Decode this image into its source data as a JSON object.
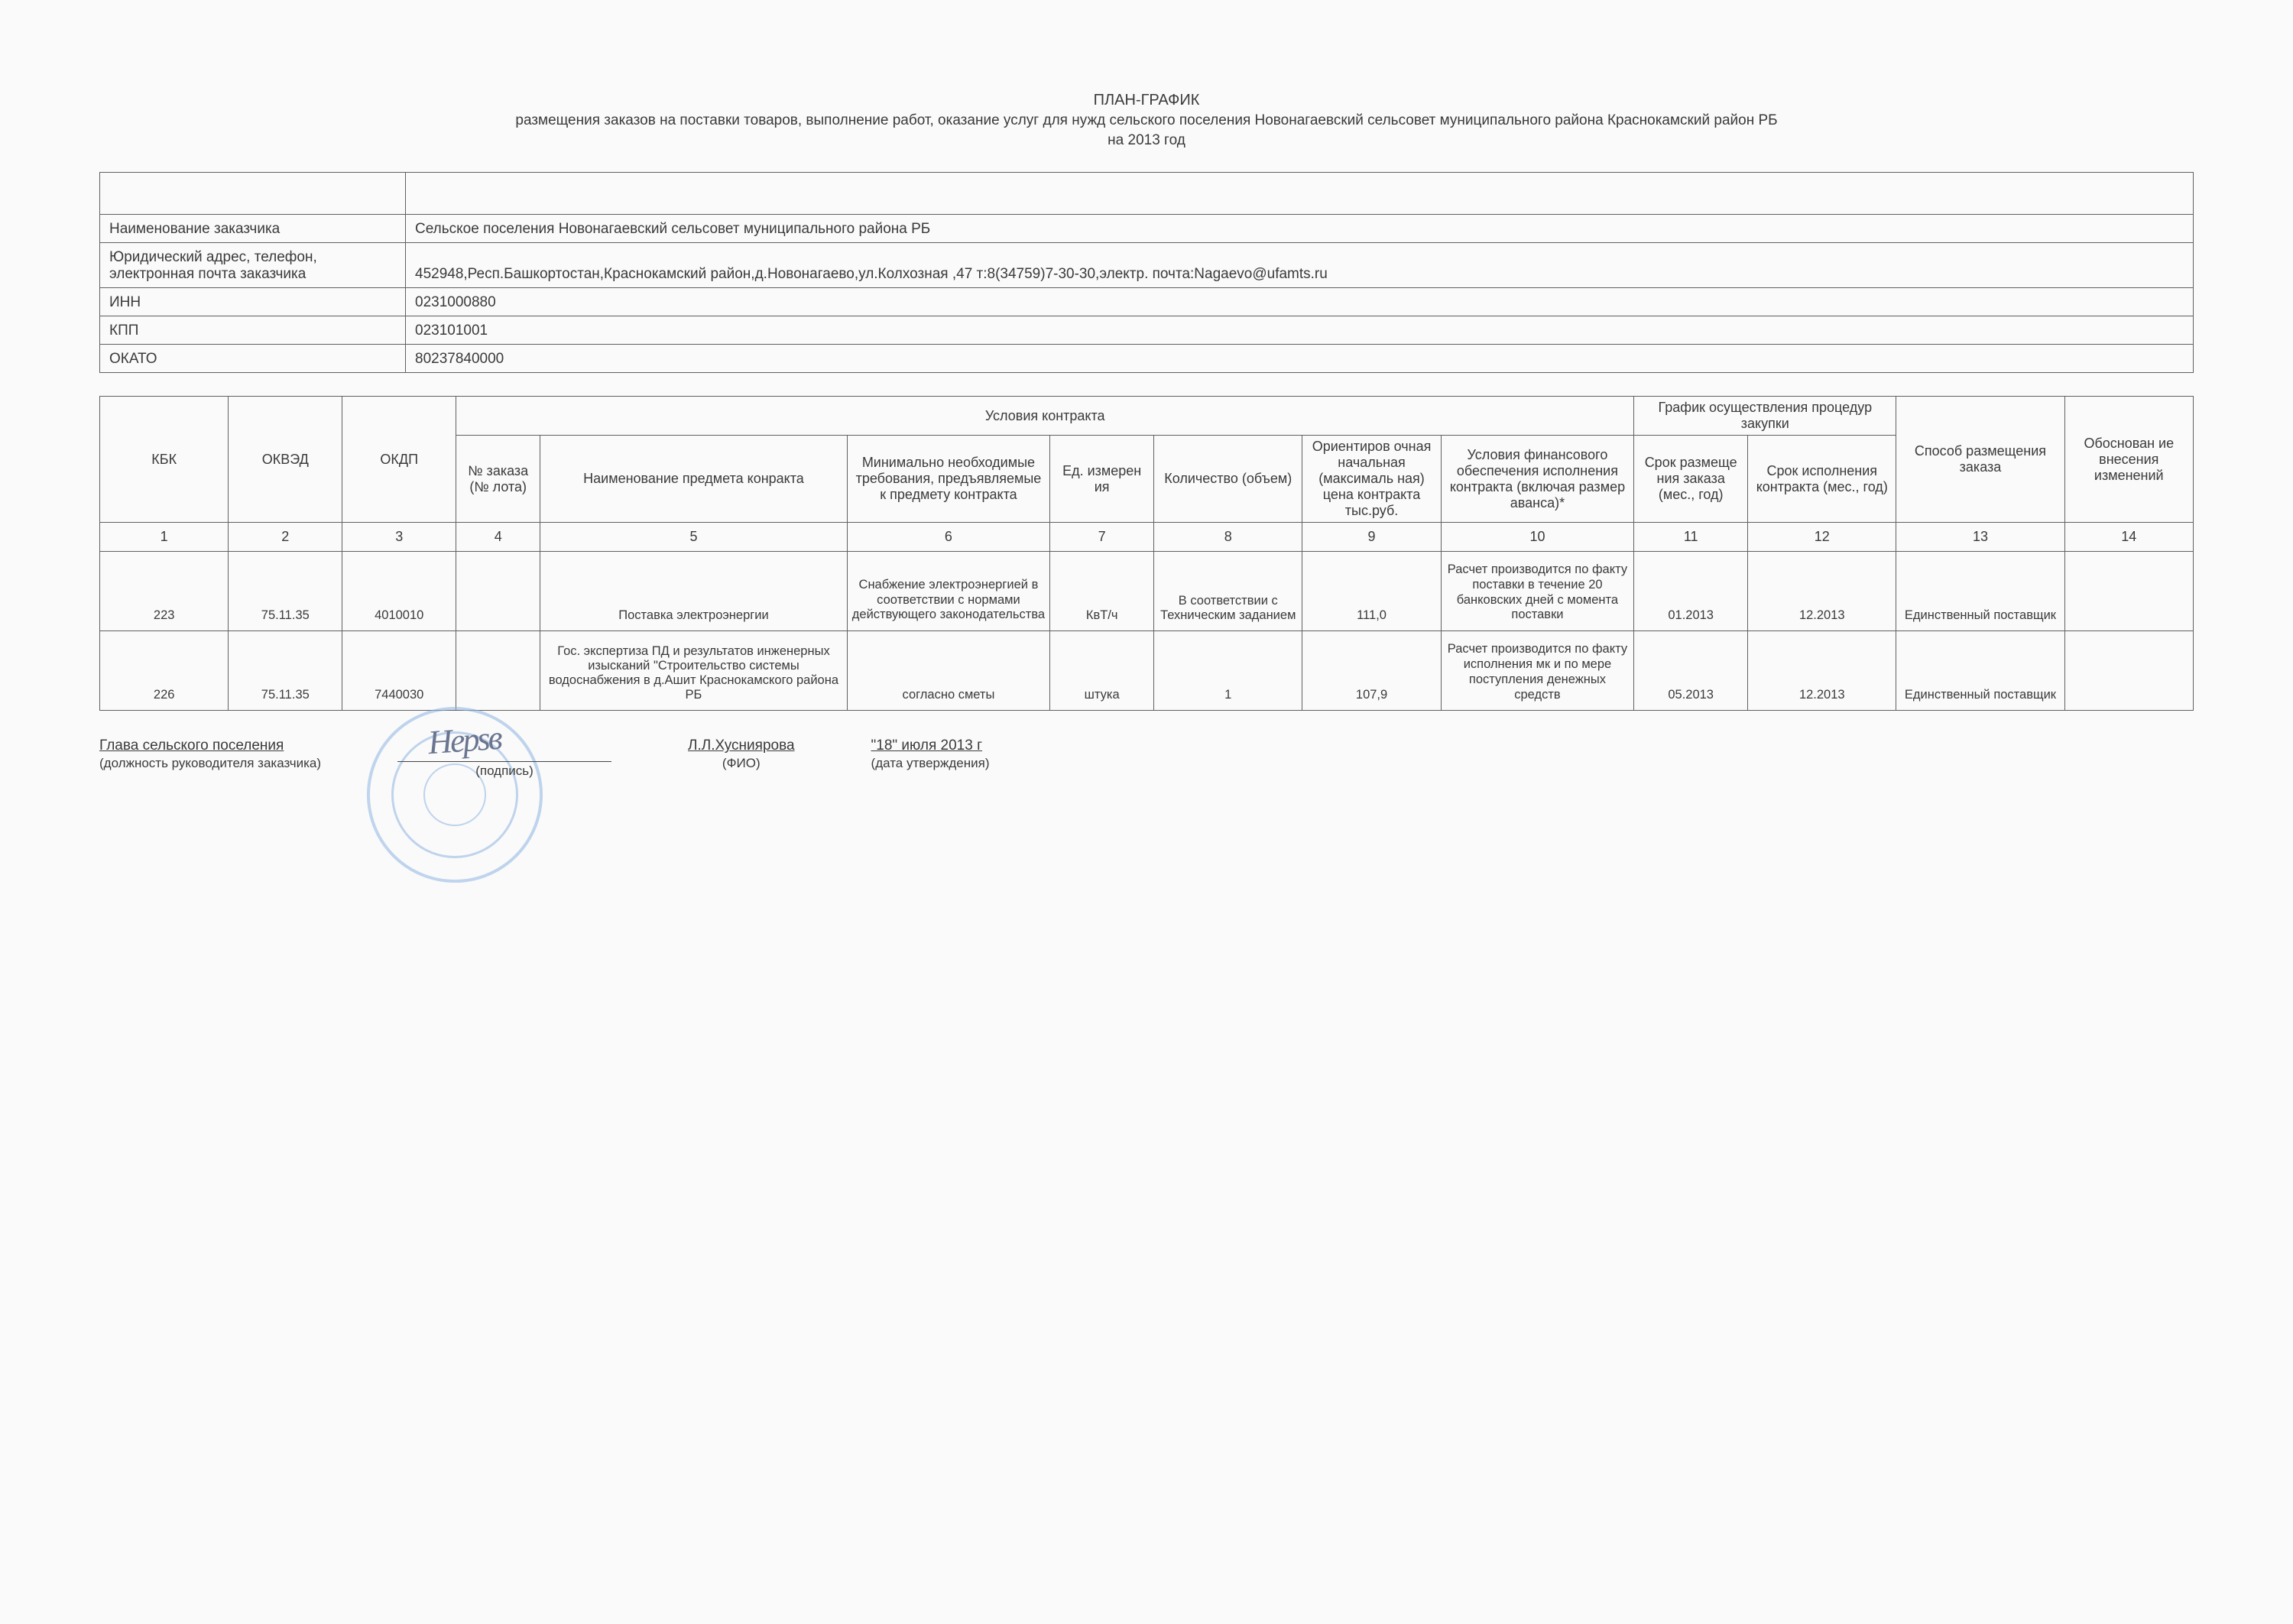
{
  "title": {
    "main": "ПЛАН-ГРАФИК",
    "sub": "размещения заказов на поставки товаров, выполнение работ, оказание услуг для нужд сельского поселения Новонагаевский сельсовет муниципального района Краснокамский район РБ",
    "year": "на 2013 год"
  },
  "info": {
    "name_label": "Наименование заказчика",
    "name_value": "Сельское поселения Новонагаевский сельсовет муниципального района РБ",
    "addr_label1": "Юридический адрес, телефон,",
    "addr_label2": "электронная почта заказчика",
    "addr_value": "452948,Респ.Башкортостан,Краснокамский район,д.Новонагаево,ул.Колхозная ,47 т:8(34759)7-30-30,электр. почта:Nagaevo@ufamts.ru",
    "inn_label": "ИНН",
    "inn_value": "0231000880",
    "kpp_label": "КПП",
    "kpp_value": "023101001",
    "okato_label": "ОКАТО",
    "okato_value": "80237840000"
  },
  "headers": {
    "group_contract": "Условия контракта",
    "group_schedule": "График осуществления процедур закупки",
    "kbk": "КБК",
    "okved": "ОКВЭД",
    "okdp": "ОКДП",
    "num": "№ заказа (№ лота)",
    "name": "Наименование предмета конракта",
    "req": "Минимально необходимые требования, предъявляемые к предмету контракта",
    "unit": "Ед. измерен ия",
    "qty": "Количество (объем)",
    "price": "Ориентиров очная начальная (максималь ная) цена контракта тыс.руб.",
    "fin": "Условия финансового обеспечения исполнения контракта (включая размер аванса)*",
    "s1": "Срок размеще ния заказа (мес., год)",
    "s2": "Срок исполнения контракта (мес., год)",
    "method": "Способ размещения заказа",
    "just": "Обоснован ие внесения изменений"
  },
  "colnums": [
    "1",
    "2",
    "3",
    "4",
    "5",
    "6",
    "7",
    "8",
    "9",
    "10",
    "11",
    "12",
    "13",
    "14"
  ],
  "rows": [
    {
      "kbk": "223",
      "okved": "75.11.35",
      "okdp": "4010010",
      "num": "",
      "name": "Поставка электроэнергии",
      "req": "Снабжение электроэнергией в соответствии с нормами действующего законодательства",
      "unit": "КвТ/ч",
      "qty": "В соответствии с Техническим заданием",
      "price": "111,0",
      "fin": "Расчет производится по факту поставки  в течение 20 банковских дней с момента поставки",
      "s1": "01.2013",
      "s2": "12.2013",
      "method": "Единственный поставщик",
      "just": ""
    },
    {
      "kbk": "226",
      "okved": "75.11.35",
      "okdp": "7440030",
      "num": "",
      "name": "Гос. экспертиза ПД и результатов инженерных изысканий \"Строительство системы водоснабжения в д.Ашит Краснокамского района РБ",
      "req": "согласно сметы",
      "unit": "штука",
      "qty": "1",
      "price": "107,9",
      "fin": "Расчет производится по факту исполнения мк и по мере поступления денежных средств",
      "s1": "05.2013",
      "s2": "12.2013",
      "method": "Единственный поставщик",
      "just": ""
    }
  ],
  "footer": {
    "position": "Глава сельского поселения",
    "position_sub": "(должность руководителя заказчика)",
    "sig_sub": "(подпись)",
    "fio": "Л.Л.Хусниярова",
    "fio_sub": "(ФИО)",
    "date": "\"18\" июля 2013 г",
    "date_sub": "(дата утверждения)"
  },
  "styling": {
    "page_bg": "#fafafa",
    "text_color": "#3a3a3a",
    "border_color": "#606060",
    "stamp_color": "#8eb4e2",
    "base_font_pt": 14,
    "font_family": "Arial"
  }
}
